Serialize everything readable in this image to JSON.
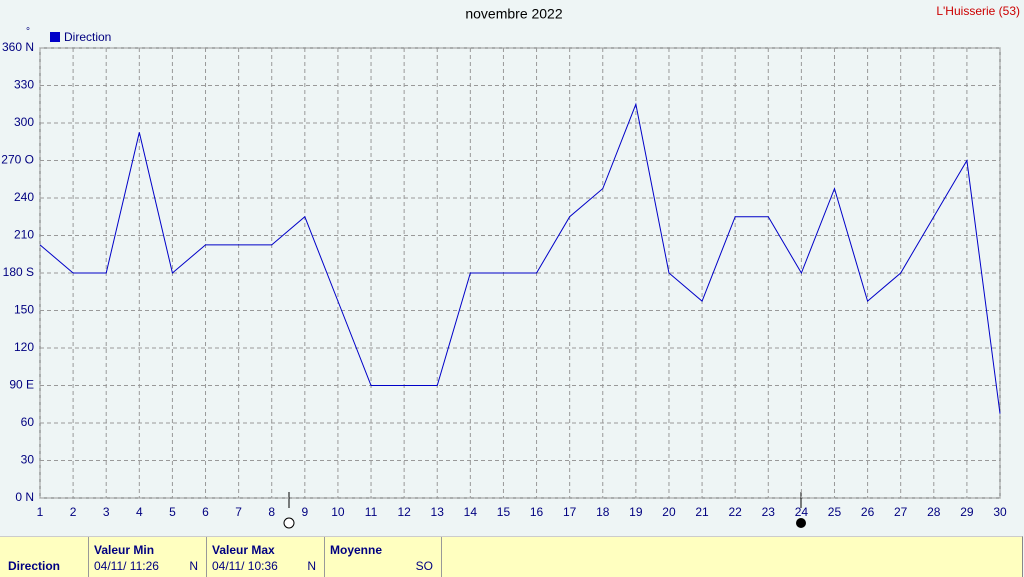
{
  "chart_data": {
    "type": "line",
    "title": "novembre 2022",
    "location": "L'Huisserie (53)",
    "y_unit": "°",
    "x": [
      1,
      2,
      3,
      4,
      5,
      6,
      7,
      8,
      9,
      10,
      11,
      12,
      13,
      14,
      15,
      16,
      17,
      18,
      19,
      20,
      21,
      22,
      23,
      24,
      25,
      26,
      27,
      28,
      29,
      30
    ],
    "series": [
      {
        "name": "Direction",
        "color": "#0000c8",
        "values": [
          202.5,
          180,
          180,
          292.5,
          180,
          202.5,
          202.5,
          202.5,
          225,
          157.5,
          90,
          90,
          90,
          180,
          180,
          180,
          225,
          247.5,
          315,
          180,
          157.5,
          225,
          225,
          180,
          247.5,
          157.5,
          180,
          225,
          270,
          67.5
        ]
      }
    ],
    "xlim": [
      1,
      30
    ],
    "xticks": [
      1,
      2,
      3,
      4,
      5,
      6,
      7,
      8,
      9,
      10,
      11,
      12,
      13,
      14,
      15,
      16,
      17,
      18,
      19,
      20,
      21,
      22,
      23,
      24,
      25,
      26,
      27,
      28,
      29,
      30
    ],
    "ylim": [
      0,
      360
    ],
    "yticks": [
      {
        "value": 0,
        "label": "0  N"
      },
      30,
      60,
      {
        "value": 90,
        "label": "90  E"
      },
      120,
      150,
      {
        "value": 180,
        "label": "180 S"
      },
      210,
      240,
      {
        "value": 270,
        "label": "270 O"
      },
      300,
      330,
      {
        "value": 360,
        "label": "360 N"
      }
    ],
    "grid": true,
    "legend": "upper left"
  },
  "table": {
    "headers": [
      "Valeur Min",
      "Valeur Max",
      "Moyenne"
    ],
    "row": {
      "label": "Direction",
      "min_time": "04/11/  11:26",
      "min_value": "N",
      "max_time": "04/11/  10:36",
      "max_value": "N",
      "mean": "SO"
    }
  }
}
